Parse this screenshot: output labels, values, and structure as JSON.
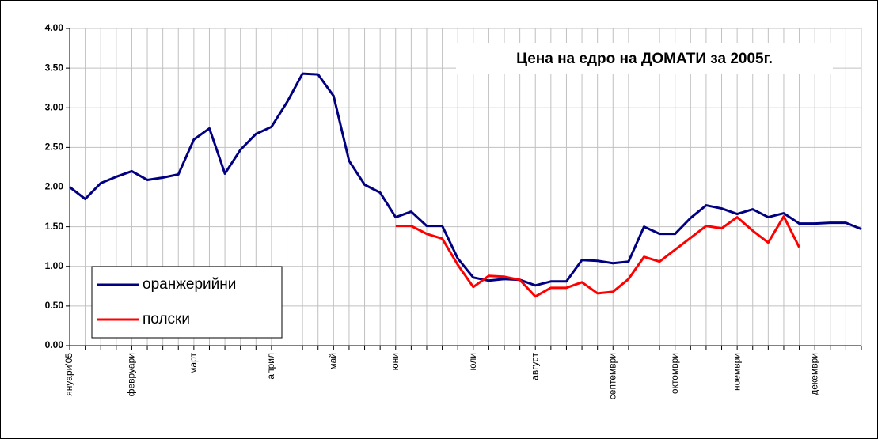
{
  "chart_data": {
    "type": "line",
    "title": "Цена на едро на ДОМАТИ за 2005г.",
    "categories": [
      "януари'05",
      null,
      null,
      null,
      "февруари",
      null,
      null,
      null,
      "март",
      null,
      null,
      null,
      null,
      "април",
      null,
      null,
      null,
      "май",
      null,
      null,
      null,
      "юни",
      null,
      null,
      null,
      null,
      "юли",
      null,
      null,
      null,
      "август",
      null,
      null,
      null,
      null,
      "септември",
      null,
      null,
      null,
      "октомври",
      null,
      null,
      null,
      "ноември",
      null,
      null,
      null,
      null,
      "декември",
      null,
      null,
      null
    ],
    "series": [
      {
        "name": "оранжерийни",
        "color": "#000080",
        "values": [
          2.0,
          1.85,
          2.05,
          2.13,
          2.2,
          2.09,
          2.12,
          2.16,
          2.6,
          2.74,
          2.17,
          2.47,
          2.67,
          2.76,
          3.07,
          3.43,
          3.42,
          3.15,
          2.33,
          2.03,
          1.93,
          1.62,
          1.69,
          1.51,
          1.51,
          1.1,
          0.86,
          0.82,
          0.84,
          0.83,
          0.76,
          0.81,
          0.81,
          1.08,
          1.07,
          1.04,
          1.06,
          1.5,
          1.41,
          1.41,
          1.61,
          1.77,
          1.73,
          1.66,
          1.72,
          1.62,
          1.67,
          1.54,
          1.54,
          1.55,
          1.55,
          1.47
        ]
      },
      {
        "name": "полски",
        "color": "#ff0000",
        "values": [
          null,
          null,
          null,
          null,
          null,
          null,
          null,
          null,
          null,
          null,
          null,
          null,
          null,
          null,
          null,
          null,
          null,
          null,
          null,
          null,
          null,
          1.51,
          1.51,
          1.41,
          1.35,
          1.02,
          0.74,
          0.88,
          0.87,
          0.83,
          0.62,
          0.73,
          0.73,
          0.8,
          0.66,
          0.68,
          0.84,
          1.12,
          1.06,
          1.21,
          1.36,
          1.51,
          1.48,
          1.62,
          1.45,
          1.3,
          1.63,
          1.24,
          null,
          null,
          null,
          null
        ]
      }
    ],
    "ylim": [
      0,
      4
    ],
    "yticks": [
      {
        "value": 0,
        "label": "0.00"
      },
      {
        "value": 0.5,
        "label": "0.50"
      },
      {
        "value": 1,
        "label": "1.00"
      },
      {
        "value": 1.5,
        "label": "1.50"
      },
      {
        "value": 2,
        "label": "2.00"
      },
      {
        "value": 2.5,
        "label": "2.50"
      },
      {
        "value": 3,
        "label": "3.00"
      },
      {
        "value": 3.5,
        "label": "3.50"
      },
      {
        "value": 4,
        "label": "4.00"
      }
    ],
    "grid": true,
    "legend": "lower left"
  }
}
